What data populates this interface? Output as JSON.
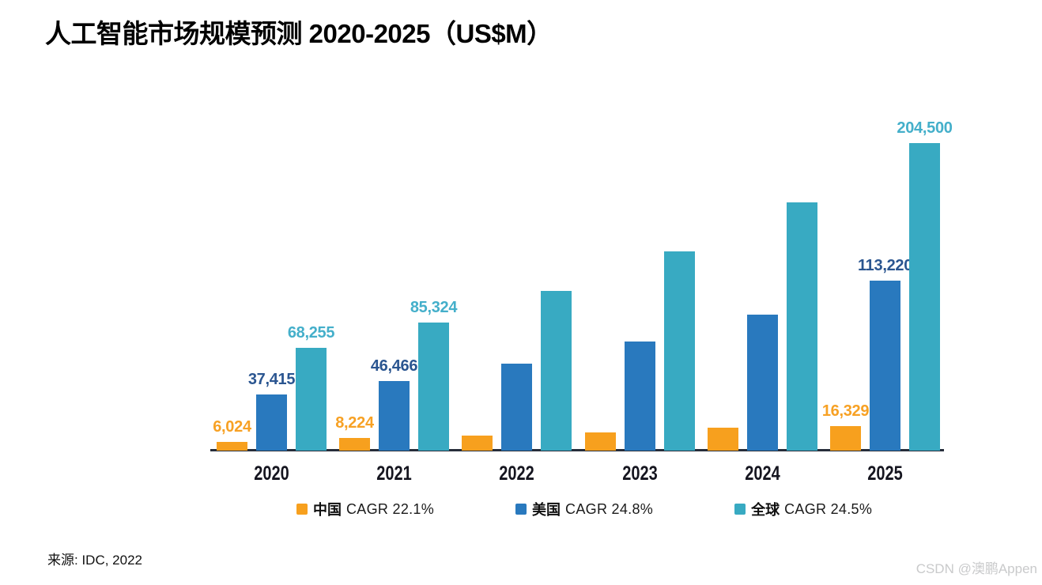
{
  "title": "人工智能市场规模预测 2020-2025（US$M）",
  "source_note": "来源: IDC, 2022",
  "watermark": "CSDN @澳鹏Appen",
  "colors": {
    "china": "#F7A01E",
    "us": "#2979BE",
    "global": "#38AAC2",
    "axis_line": "#272D3A",
    "year_tick": "#15151F",
    "title": "#000000",
    "watermark": "#C9CACB"
  },
  "chart_data": {
    "type": "bar",
    "title": "人工智能市场规模预测 2020-2025（US$M）",
    "categories": [
      "2020",
      "2021",
      "2022",
      "2023",
      "2024",
      "2025"
    ],
    "xlabel": "",
    "ylabel": "",
    "ylim": [
      0,
      204500
    ],
    "grid": false,
    "legend_position": "bottom",
    "series": [
      {
        "key": "china",
        "name": "中国",
        "cagr_label": "CAGR 22.1%",
        "color": "#F7A01E",
        "label_color": "#F7A124",
        "values": [
          6024,
          8224,
          10000,
          12300,
          15000,
          16329
        ],
        "value_labels": [
          "6,024",
          "8,224",
          "",
          "",
          "",
          "16,329"
        ]
      },
      {
        "key": "us",
        "name": "美国",
        "cagr_label": "CAGR 24.8%",
        "color": "#2979BE",
        "label_color": "#2A5590",
        "values": [
          37415,
          46466,
          58000,
          72400,
          90300,
          113220
        ],
        "value_labels": [
          "37,415",
          "46,466",
          "",
          "",
          "",
          "113,220"
        ]
      },
      {
        "key": "global",
        "name": "全球",
        "cagr_label": "CAGR 24.5%",
        "color": "#38AAC2",
        "label_color": "#44AFCA",
        "values": [
          68255,
          85324,
          106200,
          132400,
          165300,
          204500
        ],
        "value_labels": [
          "68,255",
          "85,324",
          "",
          "",
          "",
          "204,500"
        ]
      }
    ]
  }
}
